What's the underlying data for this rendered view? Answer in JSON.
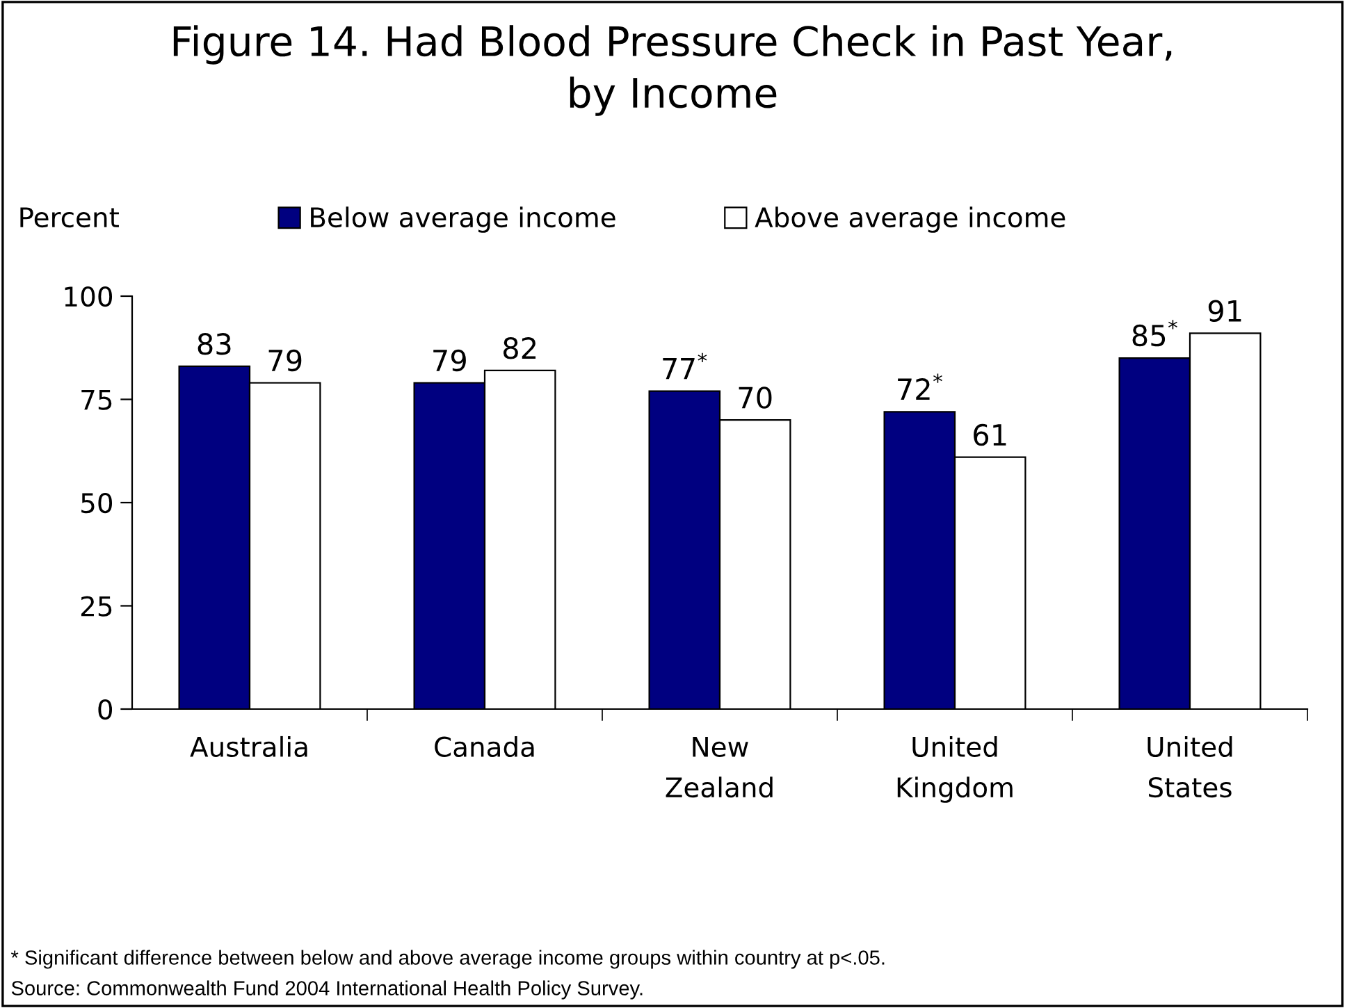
{
  "chart_data": {
    "type": "bar",
    "title": "Figure 14. Had Blood Pressure Check in Past Year,\nby Income",
    "ylabel": "Percent",
    "categories": [
      "Australia",
      "Canada",
      "New Zealand",
      "United Kingdom",
      "United States"
    ],
    "series": [
      {
        "name": "Below average income",
        "color": "#000080",
        "values": [
          83,
          79,
          77,
          72,
          85
        ],
        "value_labels": [
          "83",
          "79",
          "77$^{*}$",
          "72$^{*}$",
          "85$^{*}$"
        ]
      },
      {
        "name": "Above average income",
        "color": "#ffffff",
        "values": [
          79,
          82,
          70,
          61,
          91
        ],
        "value_labels": [
          "79",
          "82",
          "70",
          "61",
          "91"
        ]
      }
    ],
    "ylim": [
      0,
      100
    ],
    "yticks": [
      0,
      25,
      50,
      75,
      100
    ],
    "grid": false,
    "legend": "top",
    "annotations": [
      "* Significant difference between below and above average income groups within country at p<.05.",
      "Source: Commonwealth Fund 2004 International Health Policy Survey."
    ]
  }
}
